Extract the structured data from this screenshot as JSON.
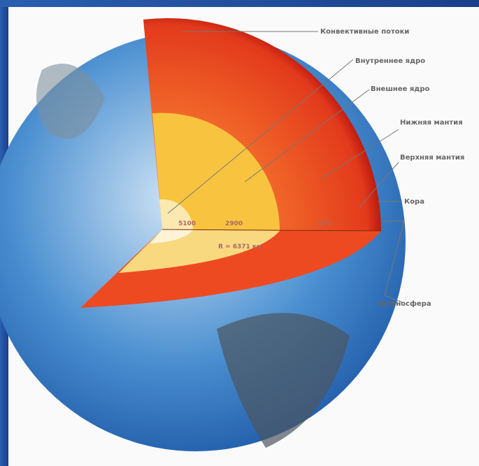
{
  "labels": [
    "Конвективные потоки",
    "Внутреннее ядро",
    "Внешнее ядро",
    "Нижняя мантия",
    "Верхняя мантия",
    "Кора",
    "Астеносфера"
  ],
  "depths": [
    "5100",
    "2900",
    "670"
  ],
  "radius": "R = 6371 км"
}
